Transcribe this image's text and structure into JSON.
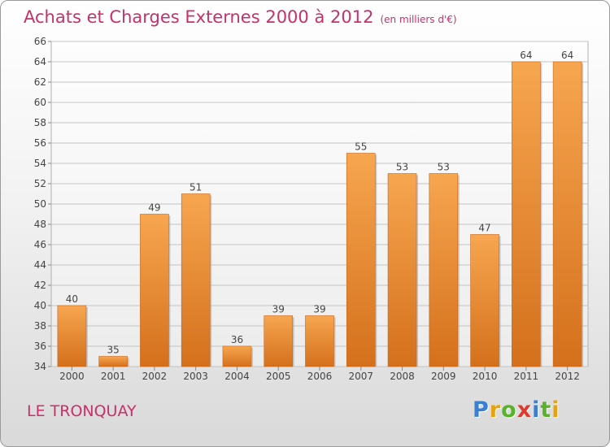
{
  "chart_data": {
    "type": "bar",
    "title": "Achats et Charges Externes 2000 à 2012",
    "unit": "(en milliers d'€)",
    "categories": [
      "2000",
      "2001",
      "2002",
      "2003",
      "2004",
      "2005",
      "2006",
      "2007",
      "2008",
      "2009",
      "2010",
      "2011",
      "2012"
    ],
    "values": [
      40,
      35,
      49,
      51,
      36,
      39,
      39,
      55,
      53,
      53,
      47,
      64,
      64
    ],
    "ylim": [
      34,
      66
    ],
    "yticks": [
      34,
      36,
      38,
      40,
      42,
      44,
      46,
      48,
      50,
      52,
      54,
      56,
      58,
      60,
      62,
      64,
      66
    ],
    "grid": true,
    "bar_color_top": "#f7a650",
    "bar_color_bottom": "#d4701c",
    "xlabel": "",
    "ylabel": ""
  },
  "place_name": "LE TRONQUAY",
  "brand": {
    "name": "Proxiti",
    "letters": [
      "P",
      "r",
      "o",
      "x",
      "i",
      "t",
      "i"
    ],
    "colors": [
      "#3b7fd1",
      "#e8a20f",
      "#58b22c",
      "#e03a2f",
      "#3b7fd1",
      "#58b22c",
      "#e8a20f"
    ]
  }
}
